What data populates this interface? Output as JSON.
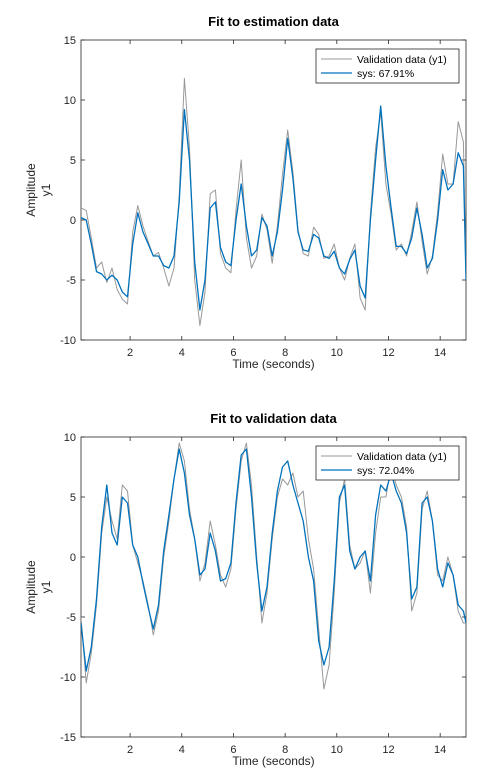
{
  "chart_data": [
    {
      "type": "line",
      "title": "Fit to estimation data",
      "xlabel": "Time (seconds)",
      "ylabel": "Amplitude",
      "channel_label": "y1",
      "xlim": [
        0.1,
        15
      ],
      "ylim": [
        -10,
        15
      ],
      "xticks": [
        2,
        4,
        6,
        8,
        10,
        12,
        14
      ],
      "yticks": [
        -10,
        -5,
        0,
        5,
        10,
        15
      ],
      "grid": false,
      "legend_position": "top-right",
      "series": [
        {
          "name": "Validation data (y1)",
          "color": "#999999",
          "x": [
            0.1,
            0.3,
            0.5,
            0.7,
            0.9,
            1.1,
            1.3,
            1.5,
            1.7,
            1.9,
            2.1,
            2.3,
            2.5,
            2.7,
            2.9,
            3.1,
            3.3,
            3.5,
            3.7,
            3.9,
            4.1,
            4.3,
            4.5,
            4.7,
            4.9,
            5.1,
            5.3,
            5.5,
            5.7,
            5.9,
            6.1,
            6.3,
            6.5,
            6.7,
            6.9,
            7.1,
            7.3,
            7.5,
            7.7,
            7.9,
            8.1,
            8.3,
            8.5,
            8.7,
            8.9,
            9.1,
            9.3,
            9.5,
            9.7,
            9.9,
            10.1,
            10.3,
            10.5,
            10.7,
            10.9,
            11.1,
            11.3,
            11.5,
            11.7,
            11.9,
            12.1,
            12.3,
            12.5,
            12.7,
            12.9,
            13.1,
            13.3,
            13.5,
            13.7,
            13.9,
            14.1,
            14.3,
            14.5,
            14.7,
            14.9,
            15.0
          ],
          "y": [
            1.0,
            0.8,
            -1.5,
            -4.0,
            -3.5,
            -5.2,
            -4.0,
            -5.8,
            -6.6,
            -7.0,
            -1.0,
            1.2,
            -0.5,
            -1.8,
            -3.0,
            -2.7,
            -4.0,
            -5.5,
            -4.0,
            2.0,
            11.8,
            6.0,
            -5.0,
            -8.8,
            -6.0,
            2.2,
            2.5,
            -2.8,
            -4.0,
            -4.4,
            0.8,
            5.0,
            -1.5,
            -4.0,
            -3.0,
            0.5,
            -0.8,
            -3.6,
            -0.5,
            3.8,
            7.5,
            4.0,
            -0.8,
            -2.8,
            -3.0,
            -0.6,
            -1.2,
            -3.2,
            -3.0,
            -2.0,
            -4.0,
            -5.0,
            -3.2,
            -2.0,
            -6.5,
            -7.5,
            0.5,
            6.0,
            9.0,
            3.0,
            0.5,
            -2.5,
            -2.0,
            -3.0,
            -1.0,
            1.5,
            -1.8,
            -4.5,
            -3.0,
            0.6,
            5.5,
            3.0,
            3.0,
            8.2,
            6.5,
            -4.5
          ]
        },
        {
          "name": "sys: 67.91%",
          "color": "#0072BD",
          "x": [
            0.1,
            0.3,
            0.5,
            0.7,
            0.9,
            1.1,
            1.3,
            1.5,
            1.7,
            1.9,
            2.1,
            2.3,
            2.5,
            2.7,
            2.9,
            3.1,
            3.3,
            3.5,
            3.7,
            3.9,
            4.1,
            4.3,
            4.5,
            4.7,
            4.9,
            5.1,
            5.3,
            5.5,
            5.7,
            5.9,
            6.1,
            6.3,
            6.5,
            6.7,
            6.9,
            7.1,
            7.3,
            7.5,
            7.7,
            7.9,
            8.1,
            8.3,
            8.5,
            8.7,
            8.9,
            9.1,
            9.3,
            9.5,
            9.7,
            9.9,
            10.1,
            10.3,
            10.5,
            10.7,
            10.9,
            11.1,
            11.3,
            11.5,
            11.7,
            11.9,
            12.1,
            12.3,
            12.5,
            12.7,
            12.9,
            13.1,
            13.3,
            13.5,
            13.7,
            13.9,
            14.1,
            14.3,
            14.5,
            14.7,
            14.9,
            15.0
          ],
          "y": [
            0.2,
            0.0,
            -2.0,
            -4.3,
            -4.5,
            -5.0,
            -4.6,
            -5.0,
            -6.0,
            -6.4,
            -2.0,
            0.6,
            -1.0,
            -2.0,
            -3.0,
            -3.0,
            -3.8,
            -4.0,
            -3.0,
            1.5,
            9.2,
            5.0,
            -3.5,
            -7.5,
            -5.0,
            1.0,
            1.5,
            -2.3,
            -3.5,
            -3.8,
            0.0,
            3.0,
            -0.5,
            -3.0,
            -2.5,
            0.2,
            -0.5,
            -3.0,
            -1.0,
            2.5,
            6.8,
            3.5,
            -1.0,
            -2.5,
            -2.6,
            -1.2,
            -1.5,
            -3.0,
            -3.2,
            -2.6,
            -4.0,
            -4.5,
            -3.3,
            -2.5,
            -5.5,
            -6.5,
            0.0,
            5.0,
            9.5,
            4.5,
            1.0,
            -2.2,
            -2.2,
            -2.8,
            -1.5,
            1.0,
            -1.2,
            -4.0,
            -3.2,
            0.0,
            4.2,
            2.5,
            3.0,
            5.6,
            4.5,
            -5.0
          ]
        }
      ]
    },
    {
      "type": "line",
      "title": "Fit to validation data",
      "xlabel": "Time (seconds)",
      "ylabel": "Amplitude",
      "channel_label": "y1",
      "xlim": [
        0.1,
        15
      ],
      "ylim": [
        -15,
        10
      ],
      "xticks": [
        2,
        4,
        6,
        8,
        10,
        12,
        14
      ],
      "yticks": [
        -15,
        -10,
        -5,
        0,
        5,
        10
      ],
      "grid": false,
      "legend_position": "top-right",
      "series": [
        {
          "name": "Validation data (y1)",
          "color": "#999999",
          "x": [
            0.1,
            0.3,
            0.5,
            0.7,
            0.9,
            1.1,
            1.3,
            1.5,
            1.7,
            1.9,
            2.1,
            2.3,
            2.5,
            2.7,
            2.9,
            3.1,
            3.3,
            3.5,
            3.7,
            3.9,
            4.1,
            4.3,
            4.5,
            4.7,
            4.9,
            5.1,
            5.3,
            5.5,
            5.7,
            5.9,
            6.1,
            6.3,
            6.5,
            6.7,
            6.9,
            7.1,
            7.3,
            7.5,
            7.7,
            7.9,
            8.1,
            8.3,
            8.5,
            8.7,
            8.9,
            9.1,
            9.3,
            9.5,
            9.7,
            9.9,
            10.1,
            10.3,
            10.5,
            10.7,
            10.9,
            11.1,
            11.3,
            11.5,
            11.7,
            11.9,
            12.1,
            12.3,
            12.5,
            12.7,
            12.9,
            13.1,
            13.3,
            13.5,
            13.7,
            13.9,
            14.1,
            14.3,
            14.5,
            14.7,
            14.9,
            15.0
          ],
          "y": [
            -5.0,
            -10.5,
            -8.0,
            -4.0,
            2.0,
            5.0,
            3.0,
            1.5,
            6.0,
            5.5,
            1.0,
            -0.5,
            -2.0,
            -4.0,
            -6.5,
            -4.5,
            0.0,
            3.0,
            6.5,
            9.5,
            8.0,
            4.0,
            1.5,
            -2.0,
            -0.5,
            3.0,
            1.0,
            -1.5,
            -2.5,
            -1.0,
            4.0,
            8.0,
            9.5,
            6.0,
            0.0,
            -5.5,
            -3.0,
            1.5,
            5.0,
            6.5,
            6.0,
            7.0,
            5.0,
            5.5,
            1.5,
            -1.0,
            -6.0,
            -11.0,
            -9.0,
            -3.0,
            4.5,
            6.5,
            1.0,
            -1.0,
            -0.5,
            0.5,
            -3.0,
            2.0,
            5.0,
            5.0,
            7.5,
            6.0,
            5.0,
            2.5,
            -4.5,
            -3.0,
            4.0,
            5.5,
            3.0,
            -1.5,
            -2.0,
            0.0,
            -1.5,
            -4.5,
            -5.5,
            -5.5
          ]
        },
        {
          "name": "sys: 72.04%",
          "color": "#0072BD",
          "x": [
            0.1,
            0.3,
            0.5,
            0.7,
            0.9,
            1.1,
            1.3,
            1.5,
            1.7,
            1.9,
            2.1,
            2.3,
            2.5,
            2.7,
            2.9,
            3.1,
            3.3,
            3.5,
            3.7,
            3.9,
            4.1,
            4.3,
            4.5,
            4.7,
            4.9,
            5.1,
            5.3,
            5.5,
            5.7,
            5.9,
            6.1,
            6.3,
            6.5,
            6.7,
            6.9,
            7.1,
            7.3,
            7.5,
            7.7,
            7.9,
            8.1,
            8.3,
            8.5,
            8.7,
            8.9,
            9.1,
            9.3,
            9.5,
            9.7,
            9.9,
            10.1,
            10.3,
            10.5,
            10.7,
            10.9,
            11.1,
            11.3,
            11.5,
            11.7,
            11.9,
            12.1,
            12.3,
            12.5,
            12.7,
            12.9,
            13.1,
            13.3,
            13.5,
            13.7,
            13.9,
            14.1,
            14.3,
            14.5,
            14.7,
            14.9,
            15.0
          ],
          "y": [
            -5.5,
            -9.5,
            -7.5,
            -3.5,
            2.5,
            6.0,
            2.0,
            1.0,
            5.0,
            4.5,
            1.0,
            0.0,
            -2.2,
            -4.2,
            -6.0,
            -4.0,
            0.5,
            3.5,
            6.5,
            9.0,
            7.0,
            3.5,
            1.5,
            -1.5,
            -1.0,
            2.0,
            0.5,
            -2.0,
            -1.8,
            -0.5,
            4.5,
            8.5,
            9.0,
            5.0,
            -0.5,
            -4.5,
            -2.5,
            2.0,
            5.5,
            7.5,
            8.0,
            6.0,
            4.5,
            3.0,
            0.0,
            -2.0,
            -7.0,
            -9.0,
            -7.5,
            -2.0,
            5.0,
            6.0,
            0.5,
            -1.0,
            0.0,
            0.5,
            -2.0,
            3.5,
            6.0,
            5.5,
            7.0,
            5.5,
            4.5,
            2.0,
            -3.5,
            -2.5,
            4.5,
            5.0,
            3.0,
            -1.0,
            -2.5,
            -0.5,
            -1.5,
            -4.0,
            -4.5,
            -5.5
          ]
        }
      ]
    }
  ]
}
